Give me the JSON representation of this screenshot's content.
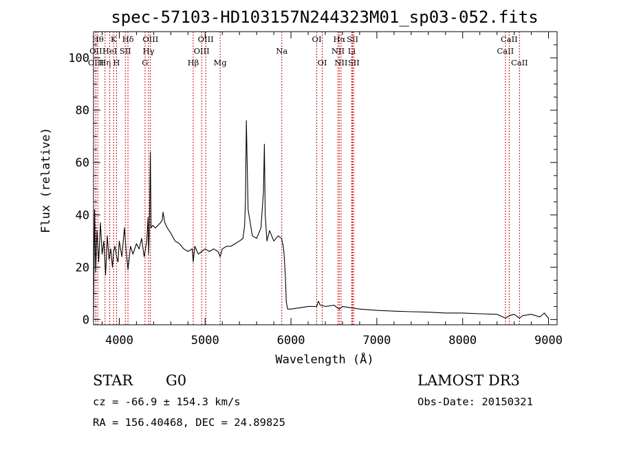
{
  "chart_data": {
    "type": "line",
    "title": "spec-57103-HD103157N244323M01_sp03-052.fits",
    "xlabel": "Wavelength (Å)",
    "ylabel": "Flux (relative)",
    "xlim": [
      3700,
      9100
    ],
    "ylim": [
      -2,
      110
    ],
    "x_ticks": [
      4000,
      5000,
      6000,
      7000,
      8000,
      9000
    ],
    "y_ticks": [
      0,
      20,
      40,
      60,
      80,
      100
    ],
    "grid": false,
    "series": [
      {
        "x": [
          3700,
          3712,
          3725,
          3740,
          3760,
          3780,
          3800,
          3820,
          3840,
          3860,
          3880,
          3900,
          3920,
          3934,
          3950,
          3968,
          3985,
          4000,
          4030,
          4060,
          4080,
          4101,
          4130,
          4160,
          4200,
          4230,
          4260,
          4290,
          4320,
          4335,
          4341,
          4350,
          4362,
          4370,
          4390,
          4420,
          4450,
          4480,
          4500,
          4510,
          4530,
          4560,
          4600,
          4650,
          4700,
          4750,
          4800,
          4850,
          4861,
          4880,
          4920,
          4960,
          5000,
          5050,
          5100,
          5150,
          5175,
          5200,
          5250,
          5300,
          5350,
          5400,
          5440,
          5460,
          5470,
          5480,
          5500,
          5550,
          5600,
          5650,
          5680,
          5690,
          5700,
          5720,
          5750,
          5800,
          5850,
          5890,
          5910,
          5920,
          5935,
          5945,
          5960,
          6000,
          6100,
          6200,
          6300,
          6320,
          6340,
          6400,
          6500,
          6563,
          6600,
          6700,
          6800,
          7000,
          7200,
          7400,
          7600,
          7800,
          8000,
          8200,
          8400,
          8500,
          8542,
          8600,
          8662,
          8700,
          8800,
          8900,
          8950,
          9000
        ],
        "y": [
          0,
          42,
          18,
          34,
          22,
          37,
          25,
          30,
          17,
          32,
          23,
          27,
          20,
          26,
          28,
          24,
          22,
          30,
          24,
          35,
          26,
          19,
          28,
          25,
          29,
          27,
          31,
          24,
          30,
          39,
          25,
          33,
          64,
          35,
          36,
          35,
          36,
          37,
          38,
          41,
          37,
          35,
          33,
          30,
          29,
          27,
          26,
          27,
          22,
          28,
          25,
          26,
          27,
          26,
          27,
          26,
          24,
          27,
          28,
          28,
          29,
          30,
          31,
          36,
          46,
          76,
          42,
          32,
          31,
          35,
          49,
          67,
          40,
          30,
          34,
          30,
          32,
          31,
          28,
          25,
          16,
          7,
          4,
          4,
          4.5,
          5,
          5,
          7,
          5.5,
          5,
          5.5,
          4,
          5,
          4.5,
          4,
          3.5,
          3.2,
          3.0,
          2.8,
          2.5,
          2.5,
          2.2,
          2.0,
          0.5,
          1.5,
          2.0,
          0.5,
          1.5,
          2.0,
          1.0,
          2.5,
          0.5
        ]
      }
    ],
    "line_marks": [
      {
        "x": 3750,
        "label": "Hθ",
        "row": 0
      },
      {
        "x": 3727,
        "label": "OII",
        "row": 1
      },
      {
        "x": 3727,
        "label": "OIII",
        "row": 2
      },
      {
        "x": 3834,
        "label": "Hη",
        "row": 2
      },
      {
        "x": 3889,
        "label": "HeI",
        "row": 1
      },
      {
        "x": 3934,
        "label": "K",
        "row": 0
      },
      {
        "x": 3968,
        "label": "H",
        "row": 2
      },
      {
        "x": 4070,
        "label": "SII",
        "row": 1
      },
      {
        "x": 4101,
        "label": "Hδ",
        "row": 0
      },
      {
        "x": 4300,
        "label": "G",
        "row": 2
      },
      {
        "x": 4341,
        "label": "Hγ",
        "row": 1
      },
      {
        "x": 4363,
        "label": "OIII",
        "row": 0
      },
      {
        "x": 4861,
        "label": "Hβ",
        "row": 2
      },
      {
        "x": 4959,
        "label": "OIII",
        "row": 1
      },
      {
        "x": 5007,
        "label": "OIII",
        "row": 0
      },
      {
        "x": 5175,
        "label": "Mg",
        "row": 2
      },
      {
        "x": 5893,
        "label": "Na",
        "row": 1
      },
      {
        "x": 6300,
        "label": "OI",
        "row": 0
      },
      {
        "x": 6364,
        "label": "OI",
        "row": 2
      },
      {
        "x": 6548,
        "label": "NII",
        "row": 1
      },
      {
        "x": 6563,
        "label": "Hα",
        "row": 0
      },
      {
        "x": 6583,
        "label": "NII",
        "row": 2
      },
      {
        "x": 6708,
        "label": "Li",
        "row": 1
      },
      {
        "x": 6717,
        "label": "SII",
        "row": 0
      },
      {
        "x": 6731,
        "label": "SII",
        "row": 2
      },
      {
        "x": 8498,
        "label": "CaII",
        "row": 1
      },
      {
        "x": 8542,
        "label": "CaII",
        "row": 0
      },
      {
        "x": 8662,
        "label": "CaII",
        "row": 2
      }
    ],
    "line_mark_color": "#cc0000"
  },
  "info": {
    "object_class": "STAR",
    "subclass": "G0",
    "survey": "LAMOST DR3",
    "redshift": "cz = -66.9 ± 154.3 km/s",
    "obs_date": "Obs-Date: 20150321",
    "coords": "RA = 156.40468, DEC =  24.89825"
  }
}
